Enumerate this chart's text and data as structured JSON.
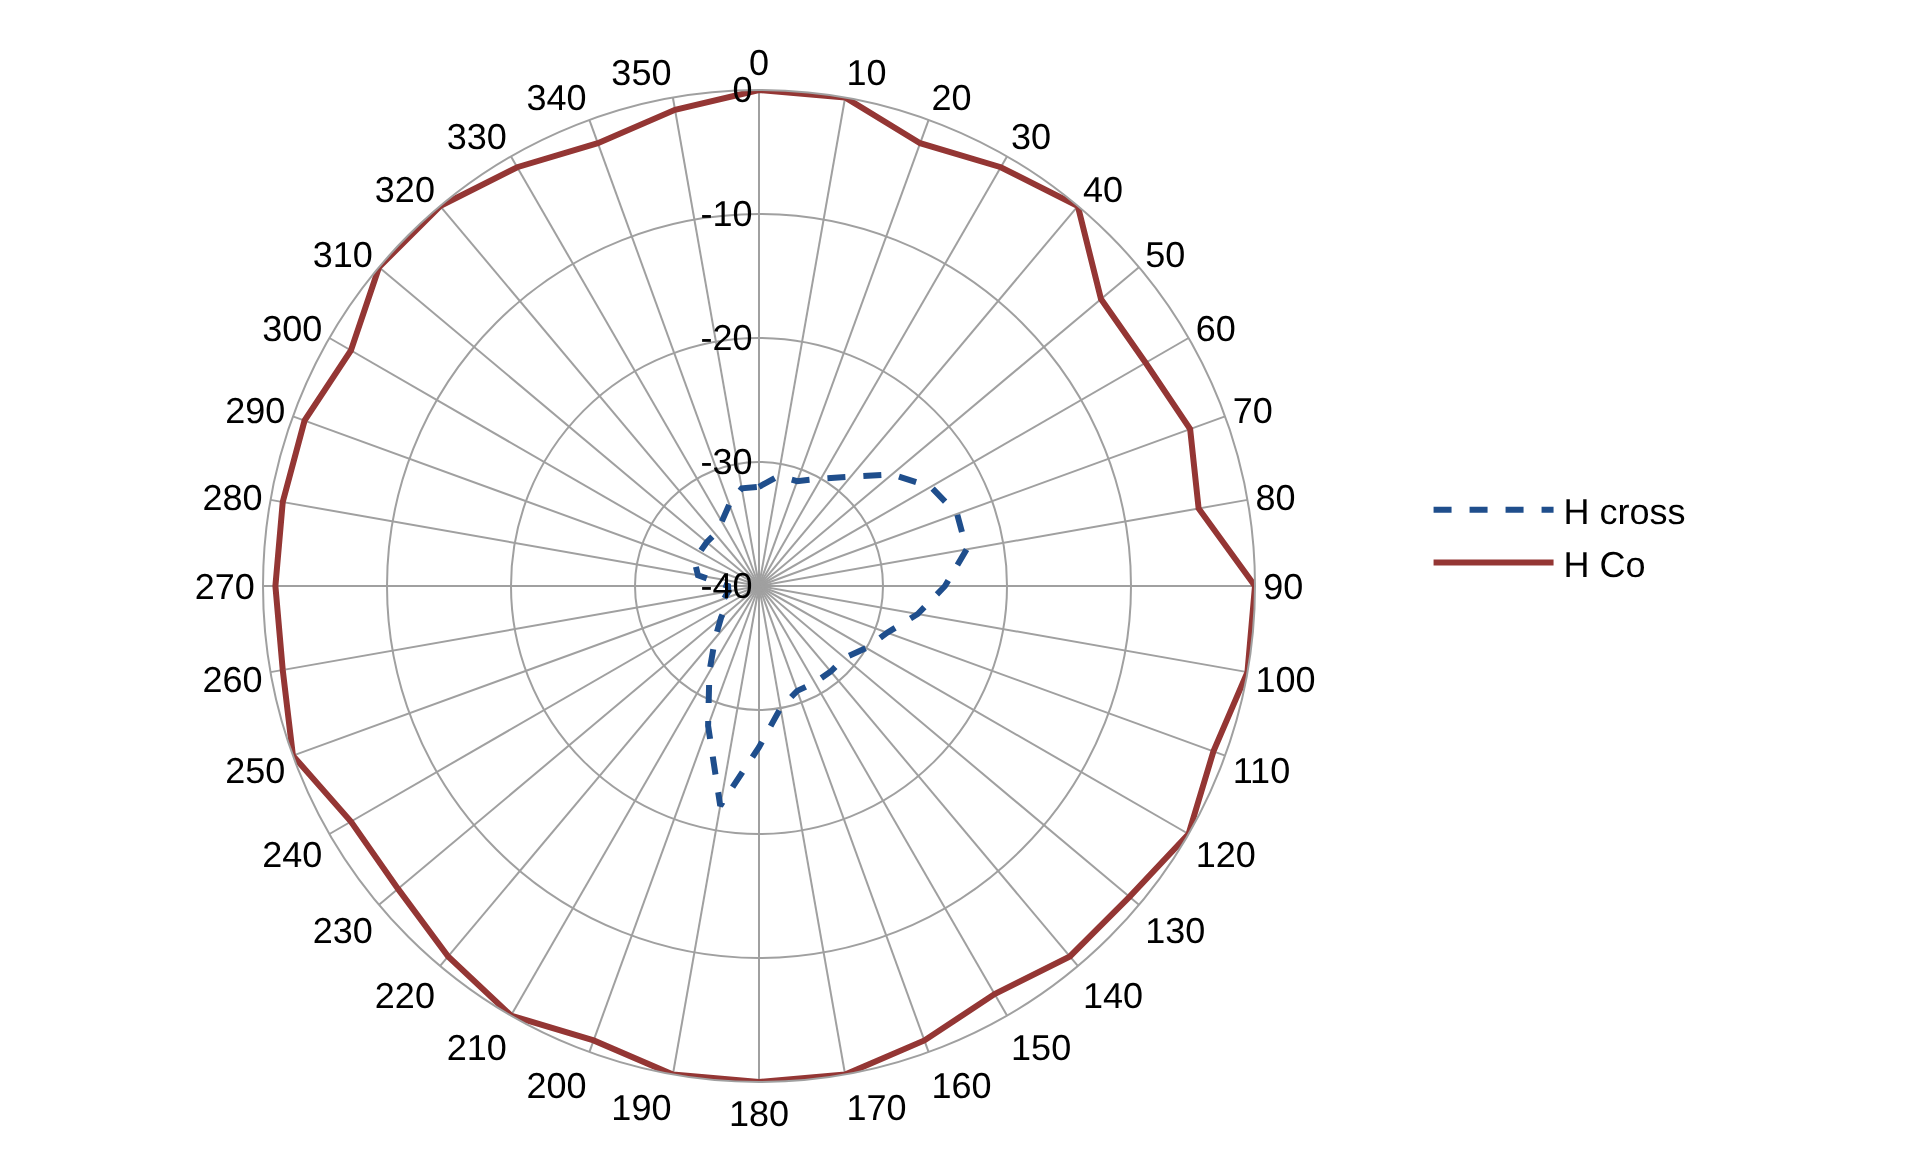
{
  "chart_data": {
    "type": "radar",
    "categories": [
      "0",
      "10",
      "20",
      "30",
      "40",
      "50",
      "60",
      "70",
      "80",
      "90",
      "100",
      "110",
      "120",
      "130",
      "140",
      "150",
      "160",
      "170",
      "180",
      "190",
      "200",
      "210",
      "220",
      "230",
      "240",
      "250",
      "260",
      "270",
      "280",
      "290",
      "300",
      "310",
      "320",
      "330",
      "340",
      "350"
    ],
    "series": [
      {
        "name": "H cross",
        "color": "#1f4e8c",
        "line_style": "dashed",
        "values": [
          -32,
          -31,
          -31,
          -30,
          -28.5,
          -26,
          -24,
          -23,
          -23,
          -25,
          -27,
          -29,
          -30,
          -31,
          -31,
          -31,
          -31,
          -30,
          -27,
          -22,
          -28,
          -32,
          -34.5,
          -36,
          -37,
          -37,
          -37.5,
          -37.5,
          -35,
          -34.5,
          -34.5,
          -34.5,
          -34.5,
          -34,
          -33,
          -32
        ]
      },
      {
        "name": "H Co",
        "color": "#943634",
        "line_style": "solid",
        "values": [
          0,
          0,
          -2,
          -1,
          0,
          -4,
          -4,
          -3,
          -4,
          0,
          0,
          -1,
          0,
          -1,
          -1,
          -2,
          -1,
          0,
          0,
          0,
          -1,
          0,
          -1,
          -2,
          -2,
          0,
          -1,
          -1,
          -1,
          -1,
          -2,
          0,
          0,
          -1,
          -2,
          -1
        ]
      }
    ],
    "ylim": [
      -40,
      0
    ],
    "yticks": [
      -40,
      -30,
      -20,
      -10,
      0
    ],
    "grid": true,
    "legend": "right",
    "marker": "none"
  }
}
